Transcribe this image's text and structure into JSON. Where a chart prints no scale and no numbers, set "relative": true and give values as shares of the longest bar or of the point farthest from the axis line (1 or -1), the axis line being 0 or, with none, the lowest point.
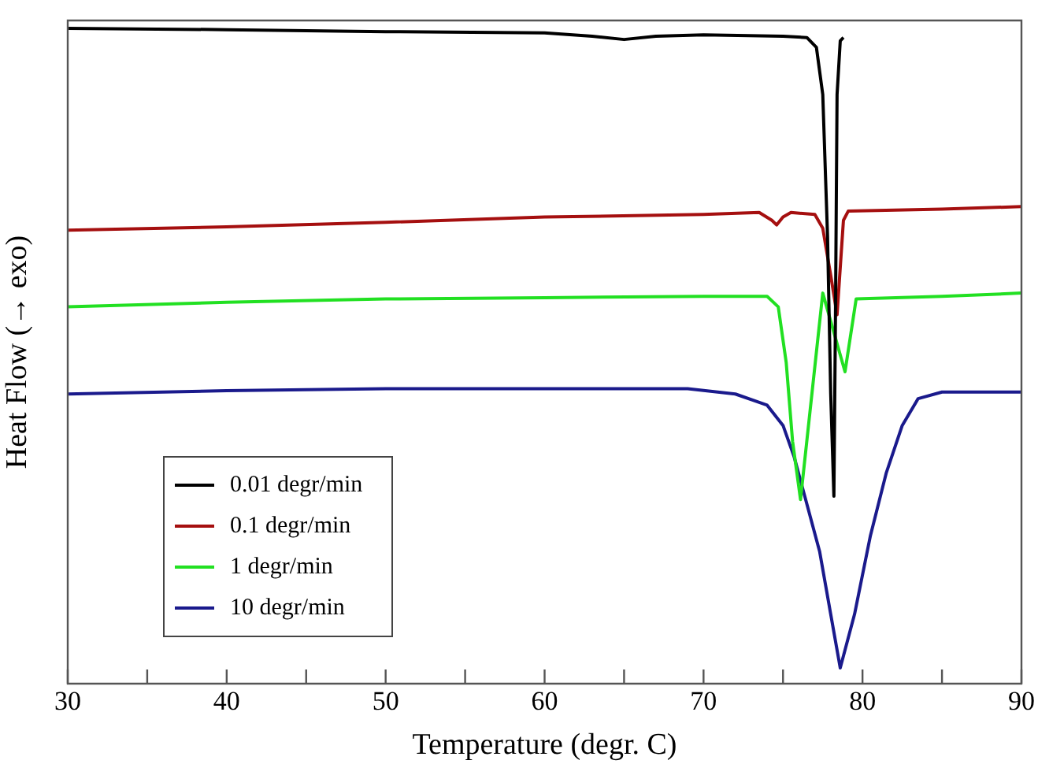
{
  "chart_data": {
    "type": "line",
    "relative": true,
    "xlabel": "Temperature (degr. C)",
    "ylabel": "Heat Flow (→ exo)",
    "xlim": [
      30,
      90
    ],
    "xticks": [
      30,
      {
        "value": 35,
        "label": null
      },
      40,
      {
        "value": 45,
        "label": null
      },
      50,
      {
        "value": 55,
        "label": null
      },
      60,
      {
        "value": 65,
        "label": null
      },
      70,
      {
        "value": 75,
        "label": null
      },
      80,
      {
        "value": 85,
        "label": null
      },
      90
    ],
    "legend": "bottom left",
    "grid": false,
    "marker": "none",
    "line_style": "solid",
    "tick_labels": "x",
    "series": [
      {
        "name": "0.01 degr/min",
        "color": "#000000",
        "x": [
          30,
          40,
          50,
          60,
          63,
          65,
          67,
          70,
          75,
          76.5,
          77.1,
          77.5,
          77.8,
          78.0,
          78.2,
          78.3,
          78.4,
          78.6,
          78.8
        ],
        "values": [
          1,
          0.998,
          0.995,
          0.993,
          0.988,
          0.983,
          0.988,
          0.99,
          0.988,
          0.986,
          0.971,
          0.899,
          0.683,
          0.442,
          0.286,
          0.563,
          0.899,
          0.981,
          0.986
        ]
      },
      {
        "name": "0.1 degr/min",
        "color": "#a50f0f",
        "x": [
          30,
          40,
          50,
          60,
          70,
          73.5,
          74.3,
          74.6,
          75,
          75.5,
          77,
          77.5,
          78.0,
          78.4,
          78.8,
          79.1,
          85,
          90
        ],
        "values": [
          0.692,
          0.697,
          0.704,
          0.712,
          0.716,
          0.719,
          0.707,
          0.7,
          0.712,
          0.719,
          0.716,
          0.695,
          0.623,
          0.563,
          0.707,
          0.721,
          0.724,
          0.728
        ]
      },
      {
        "name": "1 degr/min",
        "color": "#22e022",
        "x": [
          30,
          40,
          50,
          60,
          70,
          74,
          74.7,
          75.2,
          75.6,
          76.1,
          77.5,
          78.9,
          79.6,
          85,
          90
        ],
        "values": [
          0.575,
          0.582,
          0.587,
          0.589,
          0.591,
          0.591,
          0.575,
          0.49,
          0.37,
          0.281,
          0.596,
          0.476,
          0.587,
          0.591,
          0.596
        ]
      },
      {
        "name": "10 degr/min",
        "color": "#1a1a8c",
        "x": [
          30,
          40,
          50,
          60,
          69,
          72,
          74,
          75,
          75.7,
          76.5,
          77.3,
          78.0,
          78.6,
          79.5,
          80.5,
          81.5,
          82.5,
          83.5,
          85,
          90
        ],
        "values": [
          0.442,
          0.447,
          0.45,
          0.45,
          0.45,
          0.442,
          0.425,
          0.394,
          0.346,
          0.274,
          0.202,
          0.106,
          0.024,
          0.106,
          0.226,
          0.322,
          0.394,
          0.435,
          0.445,
          0.445
        ]
      }
    ]
  }
}
